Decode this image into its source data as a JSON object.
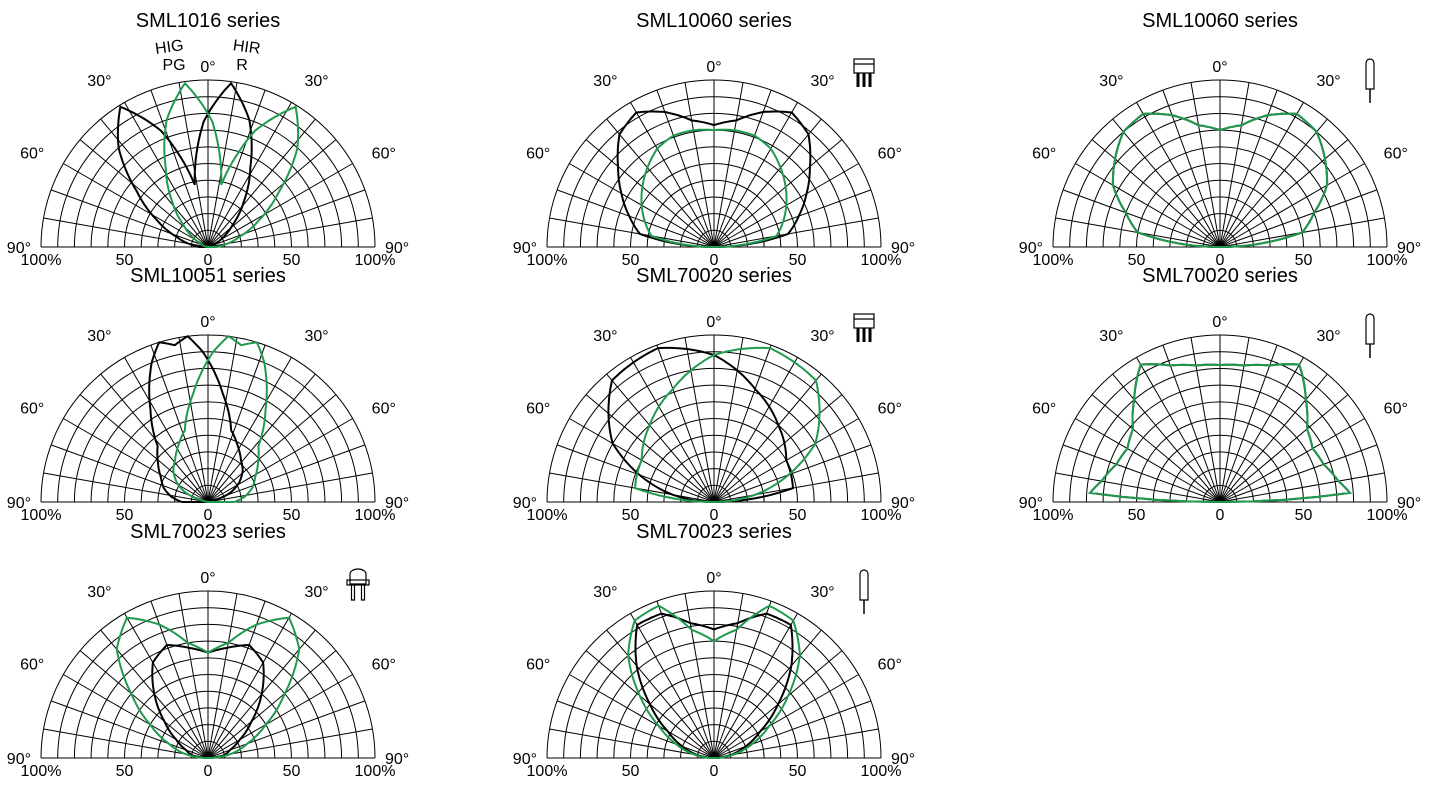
{
  "colors": {
    "black_series": "#000000",
    "green_series": "#1f9a4e",
    "grid": "#000000"
  },
  "chart_data": [
    {
      "type": "polar",
      "title": "SML1016 series",
      "package_icon": "none",
      "series_labels": {
        "black": [
          "HIG",
          "PG"
        ],
        "green": [
          "HIR",
          "R"
        ]
      },
      "angle_labels": [
        "0°",
        "30°",
        "30°",
        "60°",
        "60°",
        "90°",
        "90°"
      ],
      "radial_tick_labels": [
        "100%",
        "50",
        "0",
        "50",
        "100%"
      ],
      "series": [
        {
          "color": "black",
          "angle_deg": [
            0,
            10,
            20,
            30,
            40,
            50,
            60,
            70,
            80,
            90
          ],
          "intensity_pct": [
            38,
            75,
            99,
            80,
            54,
            35,
            20,
            10,
            4,
            2
          ],
          "mirror": true
        },
        {
          "color": "green",
          "angle_deg": [
            0,
            10,
            20,
            30,
            40,
            50,
            60,
            70,
            80,
            90
          ],
          "intensity_pct": [
            38,
            75,
            99,
            80,
            54,
            35,
            20,
            10,
            4,
            2
          ],
          "mirror": false
        }
      ]
    },
    {
      "type": "polar",
      "title": "SML10060 series",
      "package_icon": "side-leads-icon",
      "angle_labels": [
        "0°",
        "30°",
        "30°",
        "60°",
        "60°",
        "90°",
        "90°"
      ],
      "radial_tick_labels": [
        "100%",
        "50",
        "0",
        "50",
        "100%"
      ],
      "series": [
        {
          "color": "black",
          "angle_deg": [
            0,
            10,
            20,
            30,
            40,
            50,
            60,
            70,
            80,
            90
          ],
          "intensity_pct": [
            73,
            77,
            86,
            93,
            88,
            75,
            64,
            54,
            45,
            0
          ],
          "mirror": false
        },
        {
          "color": "green",
          "angle_deg": [
            0,
            10,
            20,
            30,
            40,
            50,
            60,
            70,
            80,
            90
          ],
          "intensity_pct": [
            70,
            71,
            71,
            68,
            62,
            56,
            50,
            44,
            38,
            0
          ],
          "mirror": false
        }
      ]
    },
    {
      "type": "polar",
      "title": "SML10060 series",
      "package_icon": "top-view-lead-icon",
      "angle_labels": [
        "0°",
        "30°",
        "30°",
        "60°",
        "60°",
        "90°",
        "90°"
      ],
      "radial_tick_labels": [
        "100%",
        "50",
        "0",
        "50",
        "100%"
      ],
      "series": [
        {
          "color": "black",
          "angle_deg": [
            0,
            10,
            20,
            30,
            40,
            50,
            60,
            70,
            80,
            90
          ],
          "intensity_pct": [
            70,
            74,
            84,
            92,
            90,
            82,
            74,
            60,
            50,
            0
          ],
          "mirror": false
        },
        {
          "color": "green",
          "angle_deg": [
            0,
            10,
            20,
            30,
            40,
            50,
            60,
            70,
            80,
            90
          ],
          "intensity_pct": [
            70,
            74,
            84,
            92,
            90,
            82,
            74,
            60,
            50,
            0
          ],
          "mirror": false
        }
      ]
    },
    {
      "type": "polar",
      "title": "SML10051 series",
      "package_icon": "none",
      "angle_labels": [
        "0°",
        "30°",
        "30°",
        "60°",
        "60°",
        "90°",
        "90°"
      ],
      "radial_tick_labels": [
        "100%",
        "50",
        "0",
        "50",
        "100%"
      ],
      "series": [
        {
          "color": "black",
          "angle_deg": [
            0,
            5,
            10,
            20,
            30,
            40,
            50,
            60,
            70,
            80,
            90
          ],
          "intensity_pct": [
            96,
            100,
            90,
            65,
            45,
            38,
            32,
            28,
            22,
            14,
            0
          ],
          "mirror": true
        },
        {
          "color": "green",
          "angle_deg": [
            0,
            5,
            10,
            20,
            30,
            40,
            50,
            60,
            70,
            80,
            90
          ],
          "intensity_pct": [
            96,
            100,
            90,
            65,
            45,
            38,
            32,
            28,
            22,
            14,
            0
          ],
          "mirror": false
        }
      ]
    },
    {
      "type": "polar",
      "title": "SML70020 series",
      "package_icon": "side-leads-icon",
      "angle_labels": [
        "0°",
        "30°",
        "30°",
        "60°",
        "60°",
        "90°",
        "90°"
      ],
      "radial_tick_labels": [
        "100%",
        "50",
        "0",
        "50",
        "100%"
      ],
      "series": [
        {
          "color": "black",
          "angle_deg": [
            -90,
            -80,
            -60,
            -40,
            -20,
            0,
            20,
            40,
            60,
            80,
            90
          ],
          "intensity_pct": [
            0,
            25,
            70,
            95,
            98,
            88,
            72,
            60,
            50,
            48,
            0
          ],
          "mirror": false
        },
        {
          "color": "green",
          "angle_deg": [
            -90,
            -80,
            -60,
            -40,
            -20,
            0,
            20,
            40,
            60,
            80,
            90
          ],
          "intensity_pct": [
            0,
            48,
            50,
            60,
            72,
            88,
            98,
            95,
            70,
            25,
            0
          ],
          "mirror": false
        }
      ]
    },
    {
      "type": "polar",
      "title": "SML70020 series",
      "package_icon": "top-view-lead-icon",
      "angle_labels": [
        "0°",
        "30°",
        "30°",
        "60°",
        "60°",
        "90°",
        "90°"
      ],
      "radial_tick_labels": [
        "100%",
        "50",
        "0",
        "50",
        "100%"
      ],
      "series": [
        {
          "color": "black",
          "angle_deg": [
            0,
            10,
            20,
            30,
            40,
            50,
            60,
            70,
            80,
            86,
            90
          ],
          "intensity_pct": [
            82,
            83,
            87,
            95,
            80,
            68,
            64,
            66,
            72,
            78,
            0
          ],
          "mirror": false
        },
        {
          "color": "green",
          "angle_deg": [
            0,
            10,
            20,
            30,
            40,
            50,
            60,
            70,
            80,
            86,
            90
          ],
          "intensity_pct": [
            82,
            83,
            87,
            95,
            80,
            68,
            64,
            66,
            72,
            78,
            0
          ],
          "mirror": false
        }
      ]
    },
    {
      "type": "polar",
      "title": "SML70023 series",
      "package_icon": "dome-leads-icon",
      "angle_labels": [
        "0°",
        "30°",
        "30°",
        "60°",
        "60°",
        "90°",
        "90°"
      ],
      "radial_tick_labels": [
        "100%",
        "50",
        "0",
        "50",
        "100%"
      ],
      "series": [
        {
          "color": "black",
          "angle_deg": [
            0,
            10,
            20,
            30,
            40,
            50,
            60,
            70,
            80,
            90
          ],
          "intensity_pct": [
            63,
            67,
            72,
            66,
            50,
            34,
            22,
            14,
            10,
            0
          ],
          "mirror": false
        },
        {
          "color": "green",
          "angle_deg": [
            0,
            10,
            20,
            30,
            40,
            50,
            60,
            70,
            80,
            90
          ],
          "intensity_pct": [
            63,
            70,
            85,
            97,
            85,
            60,
            40,
            25,
            14,
            0
          ],
          "mirror": false
        }
      ]
    },
    {
      "type": "polar",
      "title": "SML70023 series",
      "package_icon": "top-view-lead-icon",
      "angle_labels": [
        "0°",
        "30°",
        "30°",
        "60°",
        "60°",
        "90°",
        "90°"
      ],
      "radial_tick_labels": [
        "100%",
        "50",
        "0",
        "50",
        "100%"
      ],
      "series": [
        {
          "color": "black",
          "angle_deg": [
            0,
            10,
            20,
            30,
            40,
            50,
            60,
            70,
            80,
            90
          ],
          "intensity_pct": [
            77,
            82,
            92,
            92,
            72,
            50,
            32,
            20,
            10,
            0
          ],
          "mirror": false
        },
        {
          "color": "green",
          "angle_deg": [
            0,
            10,
            20,
            30,
            40,
            50,
            60,
            70,
            80,
            90
          ],
          "intensity_pct": [
            70,
            78,
            97,
            95,
            80,
            58,
            38,
            24,
            12,
            0
          ],
          "mirror": false
        }
      ]
    }
  ]
}
